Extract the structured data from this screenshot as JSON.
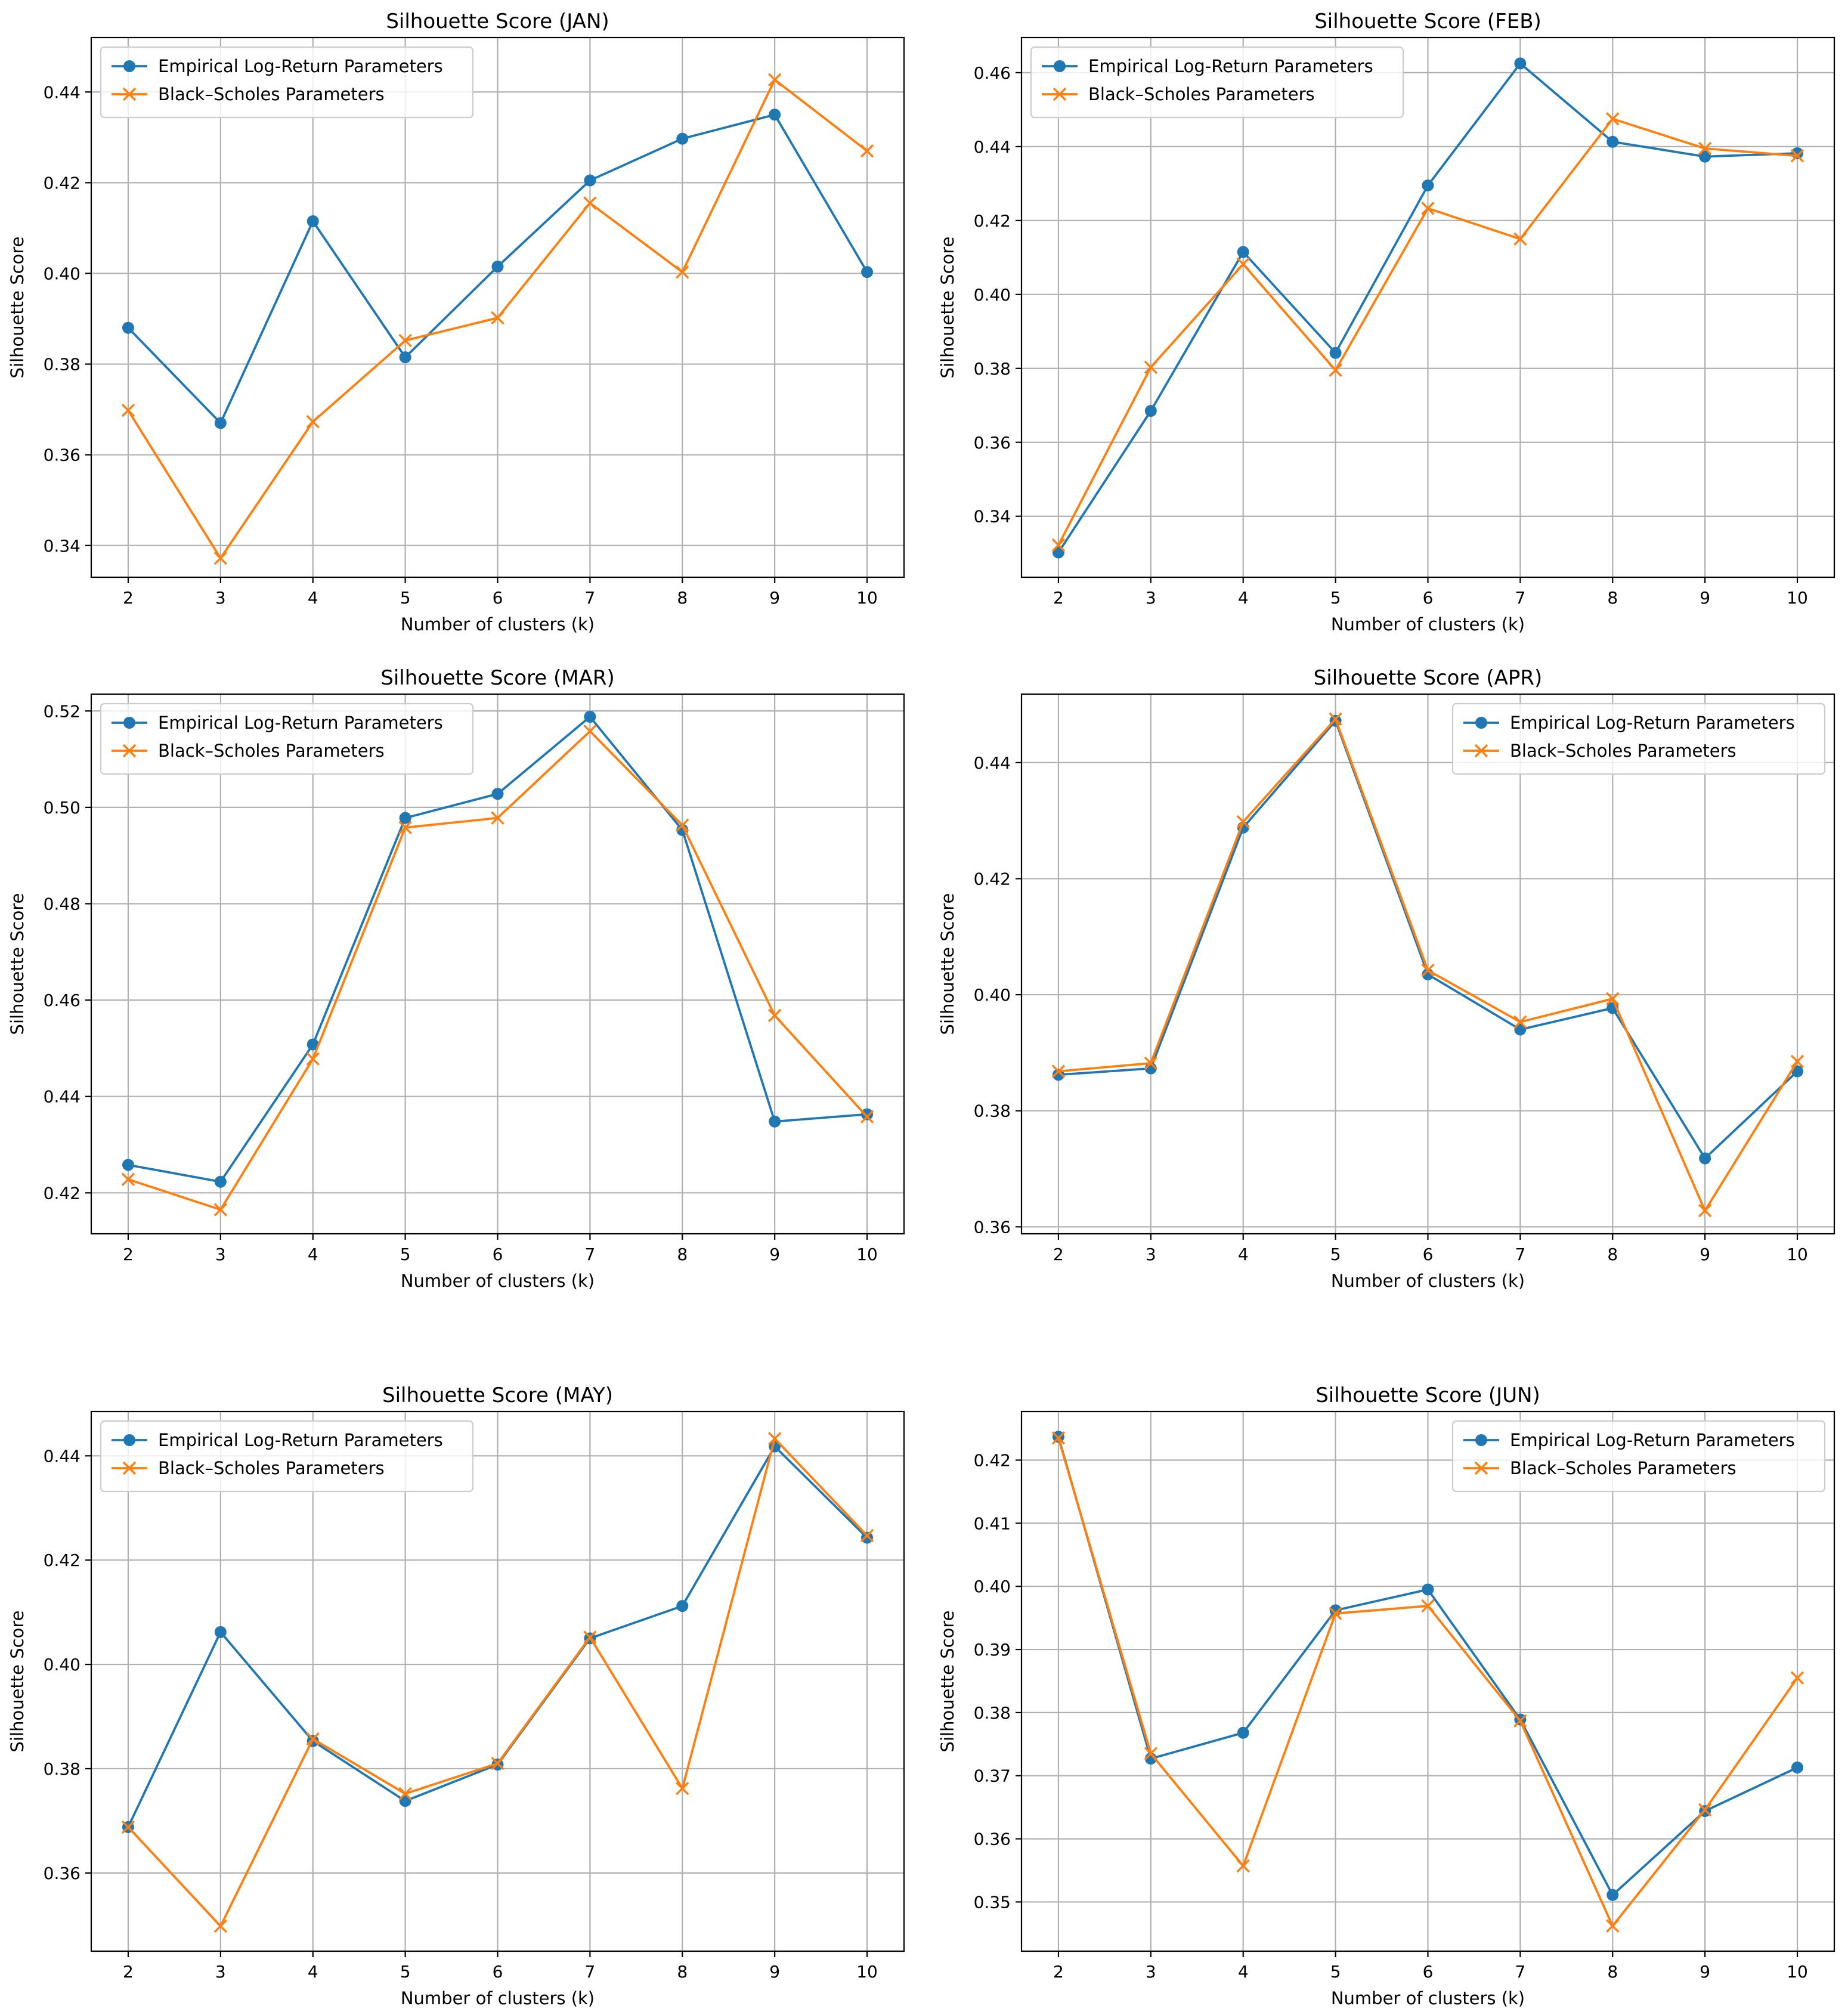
{
  "colors": {
    "empirical": "#1f77b4",
    "black_scholes": "#ff7f0e"
  },
  "chart_data": [
    {
      "type": "line",
      "title": "Silhouette Score (JAN)",
      "xlabel": "Number of clusters (k)",
      "ylabel": "Silhouette Score",
      "x": [
        2,
        3,
        4,
        5,
        6,
        7,
        8,
        9,
        10
      ],
      "ylim": [
        0.333,
        0.452
      ],
      "yticks": [
        "0.34",
        "0.36",
        "0.38",
        "0.40",
        "0.42",
        "0.44"
      ],
      "grid": true,
      "legend_position": "upper-left",
      "series": [
        {
          "name": "Empirical Log-Return Parameters",
          "marker": "circle",
          "values": [
            0.388,
            0.367,
            0.4115,
            0.3815,
            0.4015,
            0.4205,
            0.4297,
            0.435,
            0.4003
          ]
        },
        {
          "name": "Black–Scholes Parameters",
          "marker": "x",
          "values": [
            0.3698,
            0.3372,
            0.3673,
            0.3852,
            0.3902,
            0.4155,
            0.4003,
            0.4427,
            0.427
          ]
        }
      ]
    },
    {
      "type": "line",
      "title": "Silhouette Score (FEB)",
      "xlabel": "Number of clusters (k)",
      "ylabel": "Silhouette Score",
      "x": [
        2,
        3,
        4,
        5,
        6,
        7,
        8,
        9,
        10
      ],
      "ylim": [
        0.3235,
        0.4695
      ],
      "yticks": [
        "0.34",
        "0.36",
        "0.38",
        "0.40",
        "0.42",
        "0.44",
        "0.46"
      ],
      "grid": true,
      "legend_position": "upper-left",
      "series": [
        {
          "name": "Empirical Log-Return Parameters",
          "marker": "circle",
          "values": [
            0.3302,
            0.3685,
            0.4115,
            0.3842,
            0.4295,
            0.4625,
            0.4413,
            0.4373,
            0.4382
          ]
        },
        {
          "name": "Black–Scholes Parameters",
          "marker": "x",
          "values": [
            0.3322,
            0.3803,
            0.4082,
            0.3795,
            0.4233,
            0.415,
            0.4475,
            0.4395,
            0.4375
          ]
        }
      ]
    },
    {
      "type": "line",
      "title": "Silhouette Score (MAR)",
      "xlabel": "Number of clusters (k)",
      "ylabel": "Silhouette Score",
      "x": [
        2,
        3,
        4,
        5,
        6,
        7,
        8,
        9,
        10
      ],
      "ylim": [
        0.4115,
        0.5235
      ],
      "yticks": [
        "0.42",
        "0.44",
        "0.46",
        "0.48",
        "0.50",
        "0.52"
      ],
      "grid": true,
      "legend_position": "upper-left",
      "series": [
        {
          "name": "Empirical Log-Return Parameters",
          "marker": "circle",
          "values": [
            0.4258,
            0.4223,
            0.4508,
            0.4978,
            0.5028,
            0.5188,
            0.4953,
            0.4348,
            0.4363
          ]
        },
        {
          "name": "Black–Scholes Parameters",
          "marker": "x",
          "values": [
            0.4228,
            0.4165,
            0.4478,
            0.4958,
            0.4978,
            0.5158,
            0.4963,
            0.4568,
            0.4358
          ]
        }
      ]
    },
    {
      "type": "line",
      "title": "Silhouette Score (APR)",
      "xlabel": "Number of clusters (k)",
      "ylabel": "Silhouette Score",
      "x": [
        2,
        3,
        4,
        5,
        6,
        7,
        8,
        9,
        10
      ],
      "ylim": [
        0.3588,
        0.4518
      ],
      "yticks": [
        "0.36",
        "0.38",
        "0.40",
        "0.42",
        "0.44"
      ],
      "grid": true,
      "legend_position": "upper-right",
      "series": [
        {
          "name": "Empirical Log-Return Parameters",
          "marker": "circle",
          "values": [
            0.3862,
            0.3873,
            0.4288,
            0.4472,
            0.4035,
            0.394,
            0.3977,
            0.3718,
            0.3868
          ]
        },
        {
          "name": "Black–Scholes Parameters",
          "marker": "x",
          "values": [
            0.3868,
            0.3882,
            0.4298,
            0.4475,
            0.4042,
            0.3953,
            0.3993,
            0.3628,
            0.3885
          ]
        }
      ]
    },
    {
      "type": "line",
      "title": "Silhouette Score (MAY)",
      "xlabel": "Number of clusters (k)",
      "ylabel": "Silhouette Score",
      "x": [
        2,
        3,
        4,
        5,
        6,
        7,
        8,
        9,
        10
      ],
      "ylim": [
        0.345,
        0.4485
      ],
      "yticks": [
        "0.36",
        "0.38",
        "0.40",
        "0.42",
        "0.44"
      ],
      "grid": true,
      "legend_position": "upper-left",
      "series": [
        {
          "name": "Empirical Log-Return Parameters",
          "marker": "circle",
          "values": [
            0.3688,
            0.4062,
            0.3853,
            0.3738,
            0.3808,
            0.405,
            0.4112,
            0.4418,
            0.4243
          ]
        },
        {
          "name": "Black–Scholes Parameters",
          "marker": "x",
          "values": [
            0.3688,
            0.3498,
            0.3857,
            0.3752,
            0.381,
            0.4052,
            0.3762,
            0.4433,
            0.4247
          ]
        }
      ]
    },
    {
      "type": "line",
      "title": "Silhouette Score (JUN)",
      "xlabel": "Number of clusters (k)",
      "ylabel": "Silhouette Score",
      "x": [
        2,
        3,
        4,
        5,
        6,
        7,
        8,
        9,
        10
      ],
      "ylim": [
        0.3422,
        0.4277
      ],
      "yticks": [
        "0.35",
        "0.36",
        "0.37",
        "0.38",
        "0.39",
        "0.40",
        "0.41",
        "0.42"
      ],
      "grid": true,
      "legend_position": "upper-right",
      "series": [
        {
          "name": "Empirical Log-Return Parameters",
          "marker": "circle",
          "values": [
            0.4237,
            0.3727,
            0.3768,
            0.3962,
            0.3995,
            0.3789,
            0.3511,
            0.3644,
            0.3713
          ]
        },
        {
          "name": "Black–Scholes Parameters",
          "marker": "x",
          "values": [
            0.4235,
            0.3735,
            0.3557,
            0.3957,
            0.3969,
            0.3787,
            0.3462,
            0.3646,
            0.3855
          ]
        }
      ]
    }
  ]
}
